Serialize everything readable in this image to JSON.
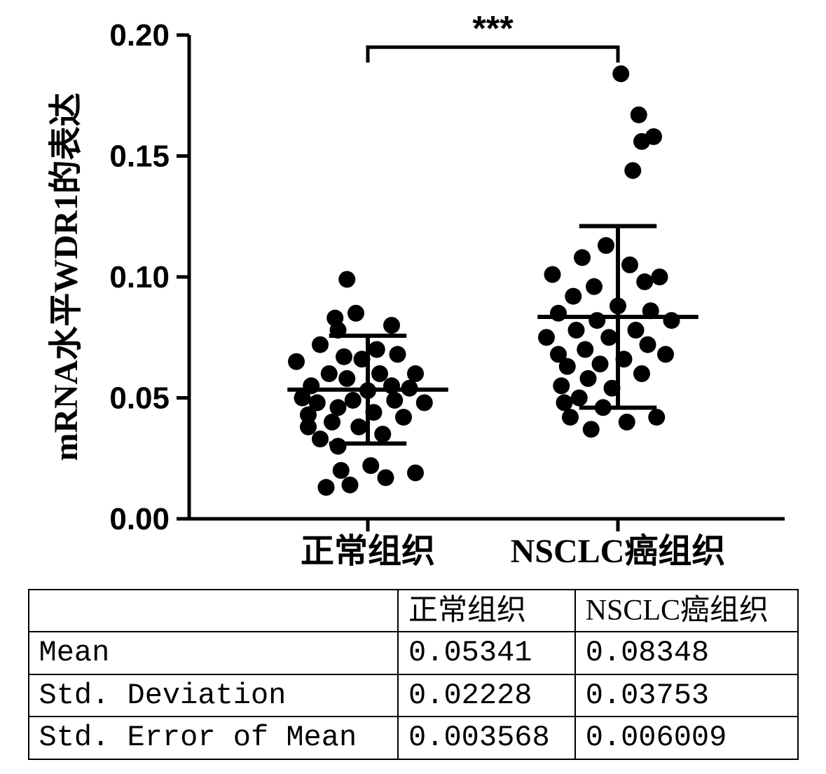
{
  "chart": {
    "type": "scatter-dotplot",
    "y_axis_label": "mRNA水平WDR1的表达",
    "y_label_fontsize": 48,
    "x_labels": [
      "正常组织",
      "NSCLC癌组织"
    ],
    "x_label_fontsize": 48,
    "ylim": [
      0.0,
      0.2
    ],
    "ytick_step": 0.05,
    "ytick_labels": [
      "0.00",
      "0.05",
      "0.10",
      "0.15",
      "0.20"
    ],
    "tick_fontsize": 44,
    "background_color": "#ffffff",
    "axis_color": "#000000",
    "axis_width": 5,
    "marker_color": "#000000",
    "marker_radius": 12,
    "error_line_width": 6,
    "significance_label": "***",
    "significance_fontsize": 50,
    "group_centers_x": [
      0.3,
      0.72
    ],
    "groups": [
      {
        "name": "正常组织",
        "mean": 0.05341,
        "sd": 0.02228,
        "sem": 0.003568,
        "points": [
          [
            -0.12,
            0.065
          ],
          [
            -0.11,
            0.05
          ],
          [
            -0.1,
            0.043
          ],
          [
            -0.1,
            0.038
          ],
          [
            -0.095,
            0.055
          ],
          [
            -0.085,
            0.048
          ],
          [
            -0.08,
            0.033
          ],
          [
            -0.08,
            0.072
          ],
          [
            -0.07,
            0.013
          ],
          [
            -0.065,
            0.06
          ],
          [
            -0.06,
            0.04
          ],
          [
            -0.055,
            0.083
          ],
          [
            -0.05,
            0.078
          ],
          [
            -0.05,
            0.046
          ],
          [
            -0.05,
            0.03
          ],
          [
            -0.045,
            0.02
          ],
          [
            -0.04,
            0.067
          ],
          [
            -0.035,
            0.099
          ],
          [
            -0.035,
            0.058
          ],
          [
            -0.03,
            0.014
          ],
          [
            -0.025,
            0.049
          ],
          [
            -0.02,
            0.085
          ],
          [
            -0.015,
            0.038
          ],
          [
            -0.01,
            0.066
          ],
          [
            0.0,
            0.053
          ],
          [
            0.005,
            0.022
          ],
          [
            0.01,
            0.044
          ],
          [
            0.015,
            0.07
          ],
          [
            0.02,
            0.06
          ],
          [
            0.025,
            0.035
          ],
          [
            0.03,
            0.017
          ],
          [
            0.04,
            0.08
          ],
          [
            0.04,
            0.055
          ],
          [
            0.045,
            0.049
          ],
          [
            0.05,
            0.068
          ],
          [
            0.06,
            0.042
          ],
          [
            0.07,
            0.054
          ],
          [
            0.08,
            0.06
          ],
          [
            0.095,
            0.048
          ],
          [
            0.08,
            0.019
          ]
        ]
      },
      {
        "name": "NSCLC癌组织",
        "mean": 0.08348,
        "sd": 0.03753,
        "sem": 0.006009,
        "points": [
          [
            -0.12,
            0.075
          ],
          [
            -0.11,
            0.101
          ],
          [
            -0.1,
            0.068
          ],
          [
            -0.1,
            0.085
          ],
          [
            -0.095,
            0.055
          ],
          [
            -0.09,
            0.048
          ],
          [
            -0.085,
            0.063
          ],
          [
            -0.08,
            0.042
          ],
          [
            -0.075,
            0.092
          ],
          [
            -0.07,
            0.078
          ],
          [
            -0.065,
            0.05
          ],
          [
            -0.06,
            0.108
          ],
          [
            -0.055,
            0.07
          ],
          [
            -0.05,
            0.058
          ],
          [
            -0.045,
            0.037
          ],
          [
            -0.04,
            0.096
          ],
          [
            -0.035,
            0.082
          ],
          [
            -0.03,
            0.064
          ],
          [
            -0.025,
            0.046
          ],
          [
            -0.02,
            0.113
          ],
          [
            -0.015,
            0.075
          ],
          [
            -0.01,
            0.054
          ],
          [
            0.0,
            0.088
          ],
          [
            0.005,
            0.184
          ],
          [
            0.01,
            0.066
          ],
          [
            0.015,
            0.04
          ],
          [
            0.02,
            0.105
          ],
          [
            0.025,
            0.144
          ],
          [
            0.03,
            0.078
          ],
          [
            0.035,
            0.167
          ],
          [
            0.04,
            0.06
          ],
          [
            0.04,
            0.156
          ],
          [
            0.045,
            0.098
          ],
          [
            0.05,
            0.072
          ],
          [
            0.055,
            0.086
          ],
          [
            0.06,
            0.158
          ],
          [
            0.065,
            0.042
          ],
          [
            0.07,
            0.1
          ],
          [
            0.08,
            0.068
          ],
          [
            0.09,
            0.082
          ]
        ]
      }
    ]
  },
  "table": {
    "columns": [
      "",
      "正常组织",
      "NSCLC癌组织"
    ],
    "rows": [
      [
        "Mean",
        "0.05341",
        "0.08348"
      ],
      [
        "Std. Deviation",
        "0.02228",
        "0.03753"
      ],
      [
        "Std. Error of Mean",
        "0.003568",
        "0.006009"
      ]
    ],
    "border_color": "#000000",
    "font_size": 42
  }
}
